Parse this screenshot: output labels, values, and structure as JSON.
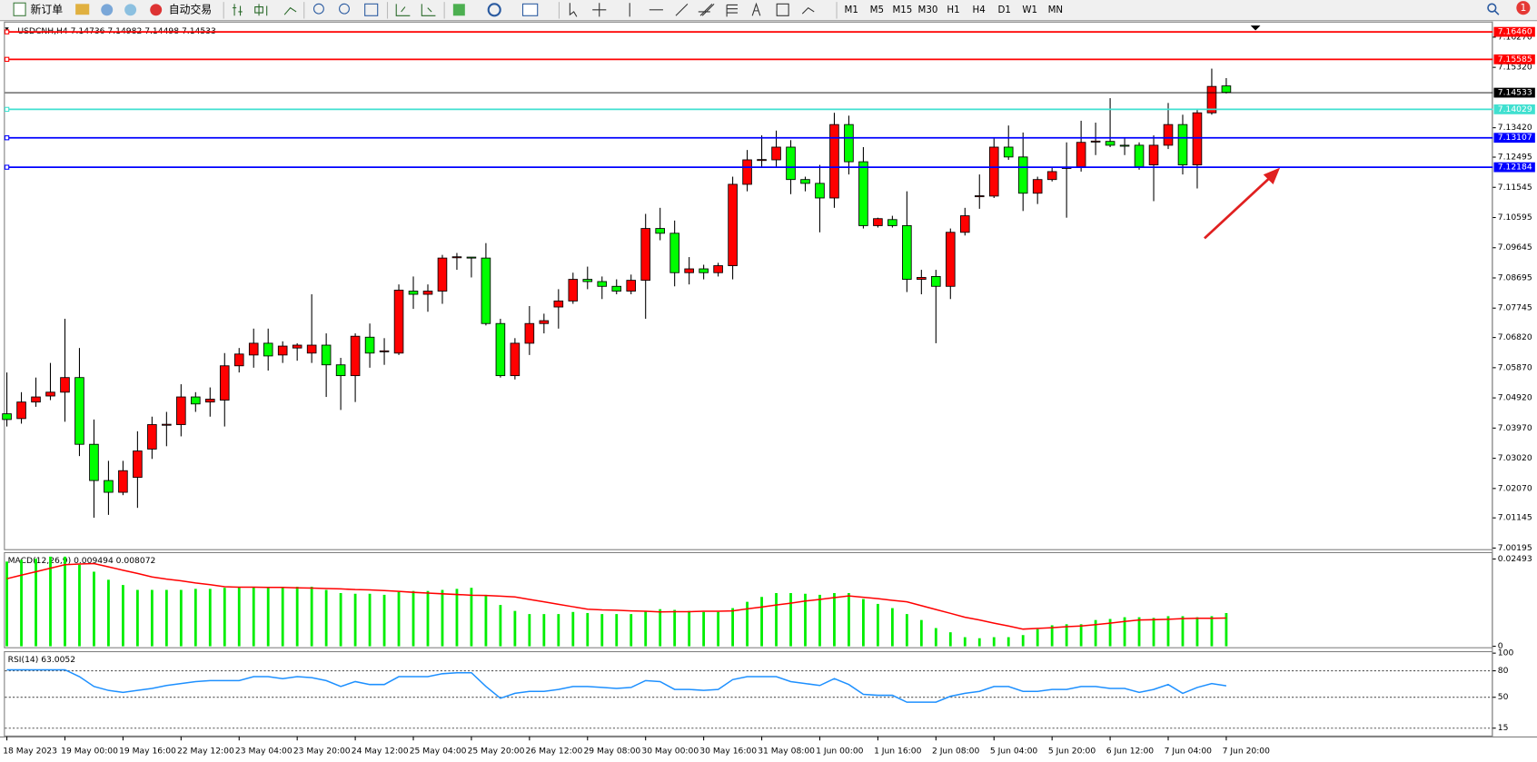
{
  "toolbar": {
    "buttons": [
      "新订单",
      "自动交易"
    ],
    "timeframes": [
      "M1",
      "M5",
      "M15",
      "M30",
      "H1",
      "H4",
      "D1",
      "W1",
      "MN"
    ],
    "notification": 1
  },
  "chart_data": [
    {
      "type": "candlestick",
      "title": "USDCNH,H4 7.14736 7.14982 7.14498 7.14533",
      "categories": [
        "18 May 2023",
        null,
        null,
        null,
        "19 May 00:00",
        null,
        null,
        null,
        "19 May 16:00",
        null,
        null,
        null,
        "22 May 12:00",
        null,
        null,
        null,
        "23 May 04:00",
        null,
        null,
        null,
        "23 May 20:00",
        null,
        null,
        null,
        "24 May 12:00",
        null,
        null,
        null,
        "25 May 04:00",
        null,
        null,
        null,
        "25 May 20:00",
        null,
        null,
        null,
        "26 May 12:00",
        null,
        null,
        null,
        "29 May 08:00",
        null,
        null,
        null,
        "30 May 00:00",
        null,
        null,
        null,
        "30 May 16:00",
        null,
        null,
        null,
        "31 May 08:00",
        null,
        null,
        null,
        "1 Jun 00:00",
        null,
        null,
        null,
        "1 Jun 16:00",
        null,
        null,
        null,
        "2 Jun 08:00",
        null,
        null,
        null,
        "5 Jun 04:00",
        null,
        null,
        null,
        "5 Jun 20:00",
        null,
        null,
        null,
        "6 Jun 12:00",
        null,
        null,
        null,
        "7 Jun 04:00",
        null,
        null,
        null,
        "7 Jun 20:00"
      ],
      "open": [
        7.0442,
        7.0427,
        7.0479,
        7.0498,
        7.051,
        7.0556,
        7.0346,
        7.0232,
        7.0195,
        7.0242,
        7.0331,
        7.0408,
        7.0408,
        7.0495,
        7.0479,
        7.0485,
        7.0593,
        7.0627,
        7.0664,
        7.0627,
        7.0649,
        7.0633,
        7.0658,
        7.0596,
        7.0562,
        7.0683,
        7.0639,
        7.0633,
        7.0828,
        7.0818,
        7.0828,
        7.0935,
        7.0935,
        7.0932,
        7.0726,
        7.0562,
        7.0664,
        7.0726,
        7.0778,
        7.0797,
        7.0865,
        7.0858,
        7.0843,
        7.0828,
        7.0862,
        7.1025,
        7.101,
        7.0886,
        7.0898,
        7.0886,
        7.0908,
        7.1164,
        7.1241,
        7.1241,
        7.1281,
        7.1179,
        7.1167,
        7.1121,
        7.1352,
        7.1235,
        7.1034,
        7.1053,
        7.1034,
        7.0865,
        7.0874,
        7.0843,
        7.1013,
        7.1127,
        7.1127,
        7.1281,
        7.125,
        7.1136,
        7.1179,
        7.1216,
        7.1219,
        7.1299,
        7.1299,
        7.1287,
        7.1287,
        7.1225,
        7.1287,
        7.1352,
        7.1225,
        7.1389,
        7.14736
      ],
      "high": [
        7.0572,
        7.051,
        7.0556,
        7.0602,
        7.0741,
        7.0649,
        7.0424,
        7.0294,
        7.0294,
        7.0387,
        7.0433,
        7.0448,
        7.0535,
        7.051,
        7.0525,
        7.0633,
        7.0649,
        7.071,
        7.071,
        7.067,
        7.0664,
        7.0818,
        7.0695,
        7.0618,
        7.0695,
        7.0726,
        7.068,
        7.0849,
        7.0874,
        7.0849,
        7.0942,
        7.0948,
        7.0935,
        7.0979,
        7.0741,
        7.068,
        7.0781,
        7.0757,
        7.0834,
        7.0886,
        7.0905,
        7.0874,
        7.0865,
        7.088,
        7.1071,
        7.109,
        7.105,
        7.0935,
        7.0911,
        7.0917,
        7.1188,
        7.1272,
        7.1318,
        7.1333,
        7.1303,
        7.1188,
        7.1225,
        7.1389,
        7.138,
        7.1281,
        7.1059,
        7.1065,
        7.1142,
        7.0895,
        7.0895,
        7.1025,
        7.109,
        7.1195,
        7.1312,
        7.1349,
        7.1327,
        7.1188,
        7.1219,
        7.1296,
        7.1364,
        7.1358,
        7.1435,
        7.1312,
        7.1296,
        7.1318,
        7.142,
        7.1383,
        7.1398,
        7.1528,
        7.14982
      ],
      "low": [
        7.0402,
        7.0411,
        7.0464,
        7.0485,
        7.0417,
        7.0309,
        7.0115,
        7.0124,
        7.0186,
        7.0146,
        7.03,
        7.034,
        7.0371,
        7.0448,
        7.0433,
        7.0402,
        7.0572,
        7.0587,
        7.0578,
        7.0602,
        7.0609,
        7.0602,
        7.0495,
        7.0454,
        7.0479,
        7.0587,
        7.0596,
        7.0627,
        7.0772,
        7.0763,
        7.0788,
        7.0895,
        7.0871,
        7.072,
        7.0556,
        7.055,
        7.0627,
        7.0695,
        7.071,
        7.0788,
        7.0834,
        7.0803,
        7.0818,
        7.0818,
        7.0741,
        7.0988,
        7.0843,
        7.0849,
        7.0865,
        7.0874,
        7.0865,
        7.1142,
        7.1219,
        7.1219,
        7.1133,
        7.1142,
        7.1013,
        7.109,
        7.1195,
        7.1025,
        7.1028,
        7.1028,
        7.0825,
        7.0818,
        7.0664,
        7.0803,
        7.1003,
        7.1087,
        7.1121,
        7.1241,
        7.108,
        7.1102,
        7.1173,
        7.1059,
        7.1204,
        7.1256,
        7.1281,
        7.1256,
        7.121,
        7.1111,
        7.1275,
        7.1195,
        7.1151,
        7.1383,
        7.14498
      ],
      "close": [
        7.0424,
        7.0479,
        7.0495,
        7.051,
        7.0556,
        7.0346,
        7.0232,
        7.0195,
        7.0263,
        7.0325,
        7.0408,
        7.0409,
        7.0495,
        7.0473,
        7.0488,
        7.0593,
        7.063,
        7.0664,
        7.0624,
        7.0655,
        7.0658,
        7.0658,
        7.0596,
        7.0562,
        7.0686,
        7.0633,
        7.064,
        7.0831,
        7.0818,
        7.0828,
        7.0932,
        7.0936,
        7.0932,
        7.0726,
        7.0562,
        7.0664,
        7.0726,
        7.0735,
        7.0797,
        7.0865,
        7.0858,
        7.0843,
        7.0828,
        7.0862,
        7.1025,
        7.101,
        7.0886,
        7.0898,
        7.0886,
        7.0908,
        7.1164,
        7.1241,
        7.1242,
        7.1281,
        7.1179,
        7.1167,
        7.1121,
        7.1352,
        7.1235,
        7.1034,
        7.1056,
        7.1034,
        7.0865,
        7.0871,
        7.0843,
        7.1013,
        7.1065,
        7.1128,
        7.1281,
        7.125,
        7.1136,
        7.1179,
        7.1204,
        7.1217,
        7.1296,
        7.13,
        7.1287,
        7.1284,
        7.1219,
        7.1287,
        7.1352,
        7.1225,
        7.1389,
        7.1472,
        7.14533
      ],
      "up_color": "#ff0000",
      "down_color": "#00ff00",
      "ylim": [
        7.0016,
        7.1676
      ],
      "yticks": [
        {
          "value": 7.1627,
          "label": "7.16270"
        },
        {
          "value": 7.1532,
          "label": "7.15320"
        },
        {
          "value": 7.1342,
          "label": "7.13420"
        },
        {
          "value": 7.12495,
          "label": "7.12495"
        },
        {
          "value": 7.11545,
          "label": "7.11545"
        },
        {
          "value": 7.10595,
          "label": "7.10595"
        },
        {
          "value": 7.09645,
          "label": "7.09645"
        },
        {
          "value": 7.08695,
          "label": "7.08695"
        },
        {
          "value": 7.07745,
          "label": "7.07745"
        },
        {
          "value": 7.0682,
          "label": "7.06820"
        },
        {
          "value": 7.0587,
          "label": "7.05870"
        },
        {
          "value": 7.0492,
          "label": "7.04920"
        },
        {
          "value": 7.0397,
          "label": "7.03970"
        },
        {
          "value": 7.0302,
          "label": "7.03020"
        },
        {
          "value": 7.0207,
          "label": "7.02070"
        },
        {
          "value": 7.01145,
          "label": "7.01145"
        },
        {
          "value": 7.00195,
          "label": "7.00195"
        }
      ],
      "levels": [
        {
          "value": 7.1646,
          "label": "7.16460",
          "color": "#ff0000"
        },
        {
          "value": 7.15585,
          "label": "7.15585",
          "color": "#ff0000"
        },
        {
          "value": 7.14533,
          "label": "7.14533",
          "color": "#000000"
        },
        {
          "value": 7.14029,
          "label": "7.14029",
          "color": "#40e0d0"
        },
        {
          "value": 7.13107,
          "label": "7.13107",
          "color": "#0000ff"
        },
        {
          "value": 7.12184,
          "label": "7.12184",
          "color": "#0000ff"
        }
      ]
    },
    {
      "type": "macd",
      "title": "MACD(12,26,9) 0.009494 0.008072",
      "ylim": [
        0,
        0.02493
      ],
      "yticks": [
        0.02493,
        0
      ],
      "series": [
        {
          "type": "bar",
          "color": "#00ee00",
          "values": [
            0.0242,
            0.0247,
            0.025,
            0.0256,
            0.0256,
            0.0233,
            0.0213,
            0.019,
            0.0175,
            0.0161,
            0.0161,
            0.0161,
            0.0161,
            0.0164,
            0.0164,
            0.0167,
            0.017,
            0.017,
            0.017,
            0.017,
            0.017,
            0.017,
            0.0161,
            0.0152,
            0.015,
            0.015,
            0.0147,
            0.0155,
            0.0158,
            0.0158,
            0.0161,
            0.0164,
            0.0167,
            0.0147,
            0.0118,
            0.0101,
            0.0092,
            0.0092,
            0.0092,
            0.0098,
            0.0095,
            0.0092,
            0.0092,
            0.0092,
            0.0101,
            0.0106,
            0.0104,
            0.0101,
            0.0098,
            0.0098,
            0.0109,
            0.0127,
            0.0141,
            0.0152,
            0.0152,
            0.015,
            0.0147,
            0.0152,
            0.0152,
            0.0135,
            0.0121,
            0.0109,
            0.0092,
            0.0075,
            0.0052,
            0.004,
            0.0026,
            0.0023,
            0.0026,
            0.0026,
            0.0032,
            0.0049,
            0.006,
            0.0063,
            0.0063,
            0.0075,
            0.0078,
            0.0083,
            0.0083,
            0.0081,
            0.0086,
            0.0086,
            0.0083,
            0.0086,
            0.009494
          ]
        },
        {
          "type": "line",
          "color": "#ff0000",
          "values": [
            0.0193,
            0.0203,
            0.0213,
            0.0223,
            0.0233,
            0.0235,
            0.0236,
            0.0227,
            0.0217,
            0.0208,
            0.0198,
            0.0192,
            0.0187,
            0.0181,
            0.0176,
            0.017,
            0.0169,
            0.0169,
            0.0168,
            0.0168,
            0.0167,
            0.0166,
            0.0165,
            0.0164,
            0.0162,
            0.0161,
            0.0159,
            0.0157,
            0.0154,
            0.0152,
            0.015,
            0.0148,
            0.0146,
            0.0145,
            0.0143,
            0.0141,
            0.0134,
            0.0127,
            0.012,
            0.0113,
            0.0106,
            0.0104,
            0.0103,
            0.0101,
            0.01,
            0.0098,
            0.0099,
            0.0099,
            0.01,
            0.01,
            0.0101,
            0.0107,
            0.0112,
            0.0118,
            0.0123,
            0.0129,
            0.0134,
            0.0139,
            0.0144,
            0.014,
            0.0136,
            0.0131,
            0.0127,
            0.0116,
            0.0105,
            0.0094,
            0.0083,
            0.0075,
            0.0066,
            0.0058,
            0.0049,
            0.0051,
            0.0053,
            0.0056,
            0.0058,
            0.0062,
            0.0066,
            0.0071,
            0.0075,
            0.0076,
            0.0077,
            0.0079,
            0.008,
            0.008,
            0.008072
          ]
        }
      ]
    },
    {
      "type": "line",
      "title": "RSI(14) 63.0052",
      "ylim": [
        0,
        100
      ],
      "yticks": [
        100,
        80,
        50,
        15
      ],
      "levels": [
        80,
        50,
        15
      ],
      "series": [
        {
          "color": "#1e90ff",
          "values": [
            81.1,
            81.1,
            81.1,
            81.1,
            81.1,
            73.3,
            62.2,
            57.8,
            55.6,
            57.8,
            60,
            63.3,
            65.6,
            67.8,
            68.9,
            68.9,
            68.9,
            73.3,
            73.3,
            71.1,
            73.3,
            72.2,
            68.9,
            62.2,
            67.8,
            64.4,
            64.4,
            73.3,
            73.3,
            73.3,
            76.7,
            77.8,
            77.8,
            62.2,
            48.9,
            54.4,
            56.7,
            56.7,
            58.9,
            62.2,
            62.2,
            61.1,
            60,
            61.1,
            68.9,
            67.8,
            58.9,
            58.9,
            57.8,
            58.9,
            70,
            73.3,
            73.3,
            73.3,
            67.8,
            65.6,
            63.3,
            71.1,
            64.4,
            53.3,
            52.2,
            52.2,
            44.4,
            44.4,
            44.4,
            51.1,
            54.4,
            56.7,
            62.2,
            62.2,
            56.7,
            56.7,
            58.9,
            58.9,
            62.2,
            62.2,
            60,
            60,
            55.6,
            58.9,
            64.4,
            54.4,
            61.1,
            65.6,
            63.0052
          ]
        }
      ]
    }
  ]
}
